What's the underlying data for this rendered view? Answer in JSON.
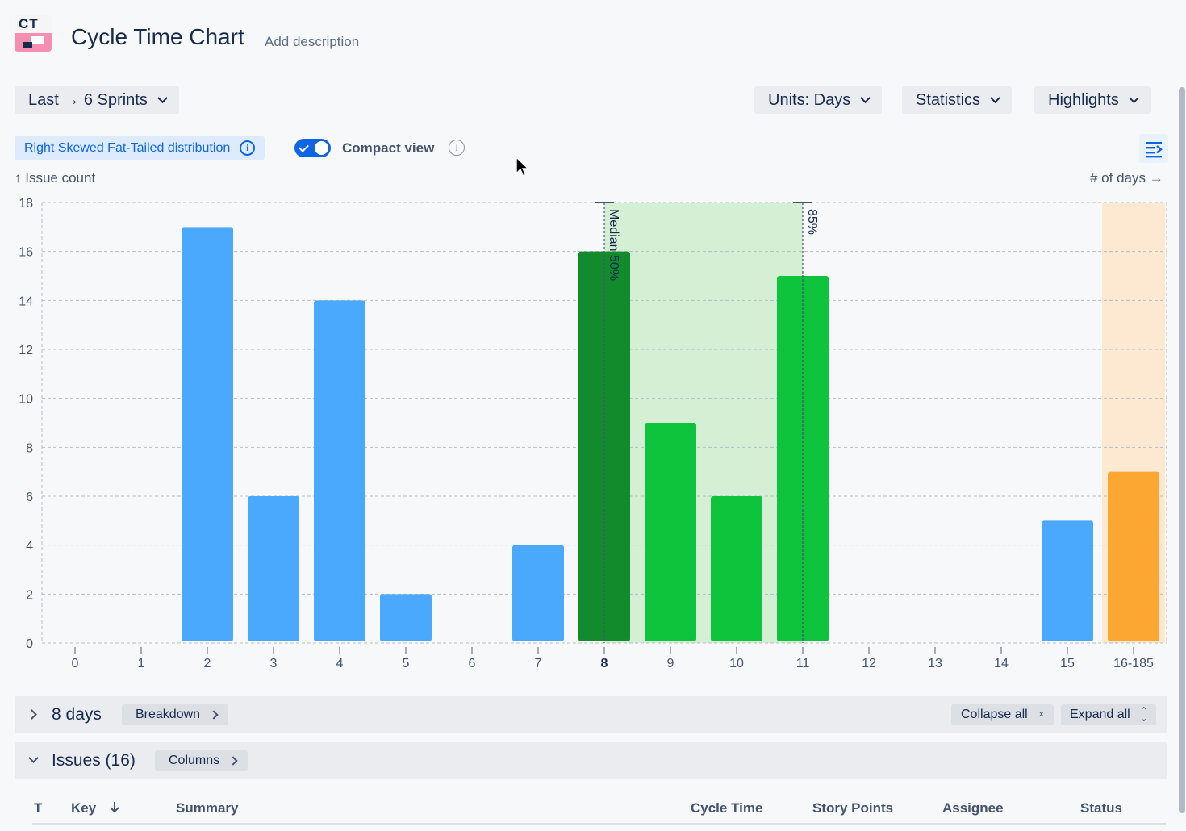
{
  "header": {
    "logo_text": "CT",
    "title": "Cycle Time Chart",
    "add_description": "Add description"
  },
  "toolbar": {
    "sprint_range": "Last → 6 Sprints",
    "units": "Units: Days",
    "statistics": "Statistics",
    "highlights": "Highlights"
  },
  "options": {
    "distribution_badge": "Right Skewed Fat-Tailed distribution",
    "compact_view_label": "Compact view",
    "compact_view_on": true
  },
  "chart_data": {
    "type": "bar",
    "ylabel": "↑ Issue count",
    "xlabel": "# of days →",
    "ylim": [
      0,
      18
    ],
    "yticks": [
      0,
      2,
      4,
      6,
      8,
      10,
      12,
      14,
      16,
      18
    ],
    "categories": [
      "0",
      "1",
      "2",
      "3",
      "4",
      "5",
      "6",
      "7",
      "8",
      "9",
      "10",
      "11",
      "12",
      "13",
      "14",
      "15",
      "16-185"
    ],
    "values": [
      0,
      0,
      17,
      6,
      14,
      2,
      0,
      4,
      16,
      9,
      6,
      15,
      0,
      0,
      0,
      5,
      7
    ],
    "bar_colors": [
      "#4ba9fd",
      "#4ba9fd",
      "#4ba9fd",
      "#4ba9fd",
      "#4ba9fd",
      "#4ba9fd",
      "#4ba9fd",
      "#4ba9fd",
      "#128b2c",
      "#0dc43c",
      "#0dc43c",
      "#0dc43c",
      "#4ba9fd",
      "#4ba9fd",
      "#4ba9fd",
      "#4ba9fd",
      "#fba732"
    ],
    "highlighted_category": "8",
    "markers": [
      {
        "label": "Median 50%",
        "at": "8"
      },
      {
        "label": "85%",
        "at": "11"
      }
    ],
    "shaded_band": {
      "from": "8",
      "to": "11",
      "color": "#d4efd3"
    },
    "outlier_band": {
      "at": "16-185",
      "color": "#fde9d1"
    },
    "grid": true
  },
  "breakdown_row": {
    "label": "8 days",
    "breakdown_button": "Breakdown",
    "collapse_all": "Collapse all",
    "expand_all": "Expand all"
  },
  "issues_row": {
    "label": "Issues (16)",
    "columns_button": "Columns"
  },
  "table": {
    "headers": {
      "type": "T",
      "key": "Key",
      "summary": "Summary",
      "cycle_time": "Cycle Time",
      "story_points": "Story Points",
      "assignee": "Assignee",
      "status": "Status"
    }
  }
}
